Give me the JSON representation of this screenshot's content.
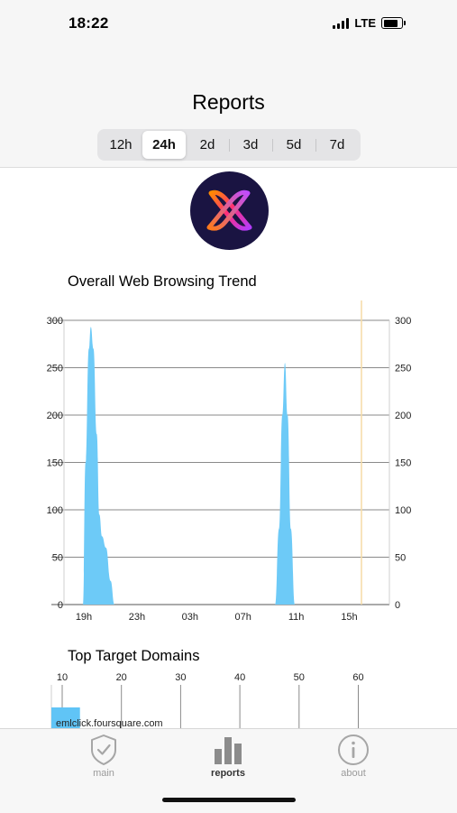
{
  "status_bar": {
    "time": "18:22",
    "network": "LTE"
  },
  "header": {
    "title": "Reports",
    "ranges": [
      "12h",
      "24h",
      "2d",
      "3d",
      "5d",
      "7d"
    ],
    "selected_range": "24h"
  },
  "colors": {
    "area_fill": "#6dcaf7",
    "bar_fill": "#60c4f6",
    "logo_bg": "#1a1442",
    "marker_line": "#f5dca6"
  },
  "chart_data": [
    {
      "type": "area",
      "title": "Overall Web Browsing Trend",
      "x_ticks": [
        "19h",
        "23h",
        "03h",
        "07h",
        "11h",
        "15h"
      ],
      "ylim": [
        0,
        300
      ],
      "y_ticks": [
        0,
        50,
        100,
        150,
        200,
        250,
        300
      ],
      "y_axis_sides": "both",
      "grid": true,
      "series": [
        {
          "values": [
            {
              "h": 0.0,
              "v": 0
            },
            {
              "h": 0.2,
              "v": 150
            },
            {
              "h": 0.45,
              "v": 270
            },
            {
              "h": 0.6,
              "v": 293
            },
            {
              "h": 0.8,
              "v": 270
            },
            {
              "h": 1.05,
              "v": 180
            },
            {
              "h": 1.25,
              "v": 95
            },
            {
              "h": 1.45,
              "v": 72
            },
            {
              "h": 1.75,
              "v": 60
            },
            {
              "h": 2.1,
              "v": 25
            },
            {
              "h": 2.4,
              "v": 0
            },
            {
              "h": 14.6,
              "v": 0
            },
            {
              "h": 14.9,
              "v": 80
            },
            {
              "h": 15.15,
              "v": 200
            },
            {
              "h": 15.35,
              "v": 255
            },
            {
              "h": 15.55,
              "v": 200
            },
            {
              "h": 15.8,
              "v": 80
            },
            {
              "h": 16.1,
              "v": 0
            }
          ]
        }
      ]
    },
    {
      "type": "bar",
      "title": "Top Target Domains",
      "orientation": "horizontal",
      "x_ticks": [
        10,
        20,
        30,
        40,
        50,
        60
      ],
      "categories": [
        "emlclick.foursquare.com"
      ],
      "values": [
        13
      ]
    }
  ],
  "tabs": [
    {
      "label": "main",
      "icon": "shield-check-icon",
      "active": false
    },
    {
      "label": "reports",
      "icon": "bar-chart-icon",
      "active": true
    },
    {
      "label": "about",
      "icon": "info-circle-icon",
      "active": false
    }
  ]
}
